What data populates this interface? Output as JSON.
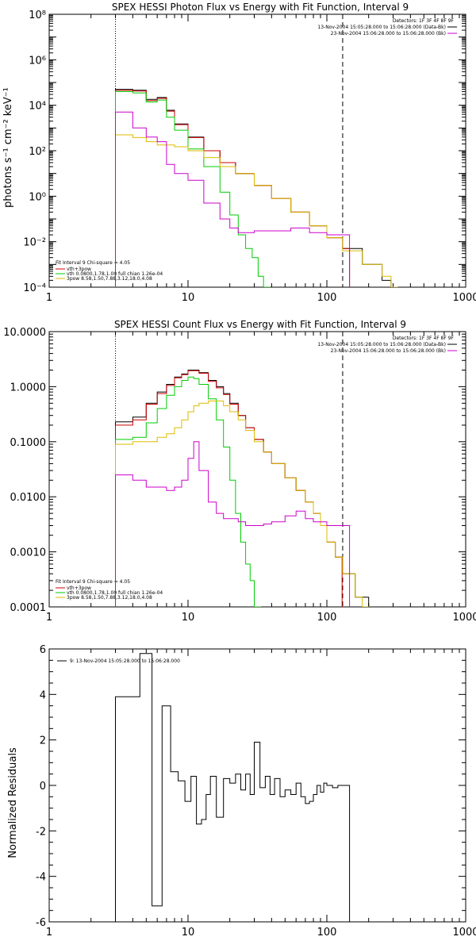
{
  "colors": {
    "model": "#000000",
    "total_fit": "#cc0000",
    "thermal": "#00cc00",
    "power_law": "#ddbb00",
    "data": "#cc00cc"
  },
  "chart_data": [
    {
      "type": "line",
      "title": "SPEX HESSI Photon Flux vs Energy with Fit Function, Interval 9",
      "ylabel": "photons s⁻¹ cm⁻² keV⁻¹",
      "xlabel": "",
      "xscale": "log",
      "yscale": "log",
      "xlim": [
        1,
        1000
      ],
      "ylim": [
        0.0001,
        100000000
      ],
      "x_tick_values": [
        1,
        10,
        100,
        1000
      ],
      "x_tick_labels": [
        "1",
        "10",
        "100",
        "1000"
      ],
      "y_tick_values": [
        0.0001,
        0.01,
        1,
        100,
        10000,
        1000000,
        100000000
      ],
      "y_tick_labels": [
        "10⁻⁴",
        "10⁻²",
        "10⁰",
        "10²",
        "10⁴",
        "10⁶",
        "10⁸"
      ],
      "vlines": [
        {
          "x": 3,
          "style": "dotted"
        },
        {
          "x": 130,
          "style": "dashed"
        }
      ],
      "header_lines": [
        "Detectors: 1F 3F 4F 8F 9F",
        "13-Nov-2004 15:05:28.000 to 15:06:28.000 (Data-Bk)",
        "23-Nov-2004 15:06:28.000 to 15:06:28.000 (Bk)"
      ],
      "fit_legend": {
        "title": "Fit Interval 9   Chi-square = 4.05",
        "items": [
          "vth+3pow",
          "vth 0.0800,1.78,1.00  full chian 1.26e-04",
          "3pow 8.58,1.50,7.88,3.12,18.0,4.08"
        ]
      },
      "series": [
        {
          "name": "total",
          "color_key": "model",
          "x": [
            3,
            4,
            5,
            6,
            7,
            8,
            10,
            13,
            17,
            22,
            30,
            40,
            55,
            75,
            100,
            130,
            180,
            250,
            290
          ],
          "y": [
            50000,
            46000,
            18000,
            22000,
            6000,
            1500,
            400,
            100,
            30,
            10,
            3,
            0.8,
            0.2,
            0.05,
            0.015,
            0.005,
            0.001,
            0.0002,
            0.0001
          ]
        },
        {
          "name": "vth+3pow",
          "color_key": "total_fit",
          "x": [
            3,
            4,
            5,
            6,
            7,
            8,
            10,
            13,
            17,
            22,
            30,
            40,
            55,
            75,
            100,
            130
          ],
          "y": [
            45000,
            42000,
            16000,
            20000,
            5500,
            1400,
            380,
            100,
            30,
            10,
            3,
            0.8,
            0.2,
            0.05,
            0.015,
            0.005
          ]
        },
        {
          "name": "vth",
          "color_key": "thermal",
          "x": [
            3,
            4,
            5,
            6,
            7,
            8,
            10,
            13,
            17,
            20,
            23,
            26,
            29,
            32,
            35
          ],
          "y": [
            40000,
            35000,
            14000,
            17000,
            3000,
            800,
            120,
            20,
            1.5,
            0.15,
            0.02,
            0.005,
            0.002,
            0.0003,
            0.0001
          ]
        },
        {
          "name": "3pow",
          "color_key": "power_law",
          "x": [
            3,
            4,
            5,
            6,
            8,
            10,
            13,
            17,
            22,
            30,
            40,
            55,
            75,
            100,
            130,
            180,
            250,
            290
          ],
          "y": [
            500,
            380,
            250,
            180,
            150,
            100,
            50,
            20,
            10,
            3,
            0.8,
            0.2,
            0.05,
            0.015,
            0.004,
            0.001,
            0.0003,
            0.0001
          ]
        },
        {
          "name": "data",
          "color_key": "data",
          "x": [
            3,
            4,
            5,
            6,
            7,
            8,
            10,
            13,
            17,
            20,
            23,
            30,
            40,
            55,
            75,
            100,
            130
          ],
          "y": [
            5000,
            1000,
            400,
            250,
            25,
            10,
            5,
            0.5,
            0.1,
            0.04,
            0.025,
            0.03,
            0.03,
            0.04,
            0.025,
            0.02,
            0.02
          ]
        }
      ]
    },
    {
      "type": "line",
      "title": "SPEX HESSI Count Flux vs Energy with Fit Function, Interval 9",
      "ylabel": "",
      "xlabel": "",
      "xscale": "log",
      "yscale": "log",
      "xlim": [
        1,
        1000
      ],
      "ylim": [
        0.0001,
        10
      ],
      "x_tick_values": [
        1,
        10,
        100,
        1000
      ],
      "x_tick_labels": [
        "1",
        "10",
        "100",
        "1000"
      ],
      "y_tick_values": [
        0.0001,
        0.001,
        0.01,
        0.1,
        1,
        10
      ],
      "y_tick_labels": [
        "0.0001",
        "0.0010",
        "0.0100",
        "0.1000",
        "1.0000",
        "10.0000"
      ],
      "vlines": [
        {
          "x": 3,
          "style": "dotted"
        },
        {
          "x": 130,
          "style": "dashed"
        }
      ],
      "header_lines": [
        "Detectors: 1F 3F 4F 8F 9F",
        "13-Nov-2004 15:05:28.000 to 15:06:28.000 (Data-Bk)",
        "23-Nov-2004 15:06:28.000 to 15:06:28.000 (Bk)"
      ],
      "fit_legend": {
        "title": "Fit Interval 9   Chi-square = 4.05",
        "items": [
          "vth+3pow",
          "vth 0.0800,1.78,1.00  full chian 1.26e-04",
          "3pow 8.58,1.50,7.88,3.12,18.0,4.08"
        ]
      },
      "series": [
        {
          "name": "total",
          "color_key": "model",
          "x": [
            3,
            4,
            5,
            6,
            7,
            8,
            9,
            10,
            11,
            12,
            14,
            16,
            18,
            20,
            23,
            26,
            30,
            35,
            40,
            50,
            60,
            70,
            80,
            90,
            100,
            115,
            130,
            160,
            200
          ],
          "y": [
            0.23,
            0.28,
            0.5,
            0.8,
            1.1,
            1.5,
            1.7,
            2.0,
            2.0,
            1.8,
            1.3,
            1.0,
            0.75,
            0.5,
            0.3,
            0.18,
            0.11,
            0.065,
            0.04,
            0.022,
            0.013,
            0.008,
            0.005,
            0.003,
            0.0015,
            0.0008,
            0.0004,
            0.00015,
            0.0001
          ]
        },
        {
          "name": "vth+3pow",
          "color_key": "total_fit",
          "x": [
            3,
            4,
            5,
            6,
            7,
            8,
            9,
            10,
            11,
            12,
            14,
            16,
            18,
            20,
            23,
            26,
            30,
            35,
            40,
            50,
            60,
            70,
            80,
            90,
            100,
            115
          ],
          "y": [
            0.2,
            0.25,
            0.48,
            0.75,
            1.05,
            1.45,
            1.65,
            1.95,
            1.95,
            1.75,
            1.25,
            0.95,
            0.72,
            0.48,
            0.3,
            0.18,
            0.11,
            0.065,
            0.04,
            0.022,
            0.013,
            0.008,
            0.005,
            0.003,
            0.0015,
            0.0008
          ]
        },
        {
          "name": "vth",
          "color_key": "thermal",
          "x": [
            3,
            4,
            5,
            6,
            7,
            8,
            9,
            10,
            11,
            12,
            14,
            16,
            18,
            20,
            22,
            24,
            26,
            28,
            30
          ],
          "y": [
            0.11,
            0.12,
            0.22,
            0.4,
            0.7,
            1.0,
            1.3,
            1.5,
            1.4,
            1.1,
            0.6,
            0.25,
            0.08,
            0.02,
            0.005,
            0.0015,
            0.0006,
            0.0003,
            0.0001
          ]
        },
        {
          "name": "3pow",
          "color_key": "power_law",
          "x": [
            3,
            4,
            5,
            6,
            7,
            8,
            9,
            10,
            11,
            12,
            14,
            16,
            18,
            20,
            23,
            26,
            30,
            35,
            40,
            50,
            60,
            70,
            80,
            90,
            100,
            115,
            130,
            160,
            180
          ],
          "y": [
            0.09,
            0.1,
            0.1,
            0.12,
            0.14,
            0.18,
            0.25,
            0.35,
            0.45,
            0.5,
            0.55,
            0.55,
            0.45,
            0.35,
            0.25,
            0.16,
            0.1,
            0.065,
            0.04,
            0.022,
            0.013,
            0.008,
            0.005,
            0.003,
            0.0015,
            0.0008,
            0.0004,
            0.00015,
            0.0001
          ]
        },
        {
          "name": "data",
          "color_key": "data",
          "x": [
            3,
            4,
            5,
            6,
            7,
            8,
            9,
            10,
            11,
            12,
            14,
            16,
            18,
            20,
            23,
            26,
            30,
            35,
            40,
            50,
            60,
            70,
            80,
            90,
            100,
            115,
            130
          ],
          "y": [
            0.025,
            0.02,
            0.015,
            0.015,
            0.013,
            0.015,
            0.02,
            0.05,
            0.1,
            0.03,
            0.008,
            0.005,
            0.004,
            0.004,
            0.0035,
            0.003,
            0.003,
            0.0032,
            0.0035,
            0.0045,
            0.0055,
            0.004,
            0.0035,
            0.0035,
            0.003,
            0.003,
            0.003
          ]
        }
      ]
    },
    {
      "type": "line",
      "title": "",
      "ylabel": "Normalized Residuals",
      "xlabel": "",
      "xscale": "log",
      "yscale": "linear",
      "xlim": [
        1,
        1000
      ],
      "ylim": [
        -6,
        6
      ],
      "x_tick_values": [
        1,
        10,
        100,
        1000
      ],
      "x_tick_labels": [
        "1",
        "10",
        "100",
        "1000"
      ],
      "y_tick_values": [
        -6,
        -4,
        -2,
        0,
        2,
        4,
        6
      ],
      "y_tick_labels": [
        "-6",
        "-4",
        "-2",
        "0",
        "2",
        "4",
        "6"
      ],
      "legend": "9: 13-Nov-2004 15:05:28.000 to 15:06:28.000",
      "series": [
        {
          "name": "residuals",
          "color_key": "model",
          "x": [
            3,
            4.5,
            5.5,
            6.5,
            7.5,
            8.5,
            9.5,
            10.5,
            11.5,
            12.5,
            13.5,
            14.5,
            16,
            18,
            20,
            22,
            24,
            26,
            28,
            30,
            33,
            36,
            39,
            42,
            46,
            50,
            55,
            60,
            65,
            70,
            75,
            80,
            85,
            90,
            95,
            100,
            110,
            120,
            130
          ],
          "y": [
            3.9,
            5.8,
            -5.3,
            3.5,
            0.6,
            0.2,
            -0.7,
            0.4,
            -1.7,
            -1.5,
            -0.4,
            0.4,
            -1.4,
            0.3,
            0.1,
            0.5,
            -0.2,
            0.5,
            -0.4,
            1.9,
            -0.1,
            0.4,
            -0.4,
            0.3,
            -0.5,
            -0.2,
            -0.4,
            0.1,
            -0.5,
            -0.8,
            -0.7,
            -0.4,
            0.0,
            -0.3,
            0.1,
            0.0,
            -0.1,
            0.0,
            0.0
          ]
        }
      ]
    }
  ]
}
